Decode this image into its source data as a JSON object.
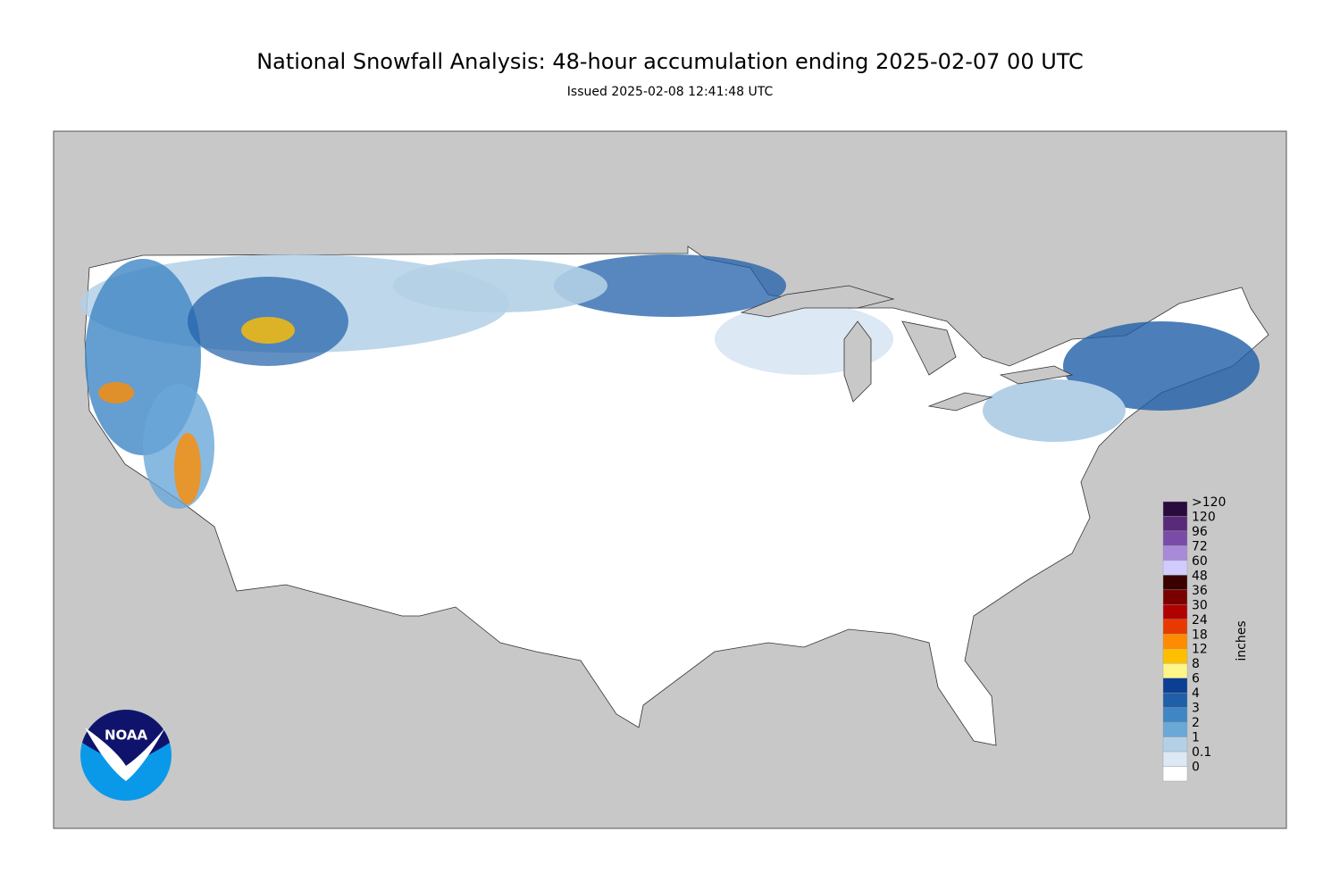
{
  "header": {
    "title": "National Snowfall Analysis: 48-hour accumulation ending 2025-02-07 00 UTC",
    "subtitle": "Issued 2025-02-08 12:41:48 UTC"
  },
  "legend": {
    "unit": "inches",
    "items": [
      {
        "label": ">120",
        "color": "#2a0b3d"
      },
      {
        "label": 120,
        "color": "#5a2a7a"
      },
      {
        "label": 96,
        "color": "#7a4ca8"
      },
      {
        "label": 72,
        "color": "#a98ad8"
      },
      {
        "label": 60,
        "color": "#d0ccff"
      },
      {
        "label": 48,
        "color": "#3a0000"
      },
      {
        "label": 36,
        "color": "#7a0000"
      },
      {
        "label": 30,
        "color": "#b00000"
      },
      {
        "label": 24,
        "color": "#e83a00"
      },
      {
        "label": 18,
        "color": "#ff8c00"
      },
      {
        "label": 12,
        "color": "#ffbf00"
      },
      {
        "label": 8,
        "color": "#fff68a"
      },
      {
        "label": 6,
        "color": "#0b3f94"
      },
      {
        "label": 4,
        "color": "#1f5fa8"
      },
      {
        "label": 3,
        "color": "#3f86c4"
      },
      {
        "label": 2,
        "color": "#6aa8d8"
      },
      {
        "label": 1,
        "color": "#b3d0e6"
      },
      {
        "label": 0.1,
        "color": "#dce8f4"
      },
      {
        "label": 0,
        "color": "#ffffff"
      }
    ]
  },
  "logo": {
    "text": "NOAA"
  }
}
